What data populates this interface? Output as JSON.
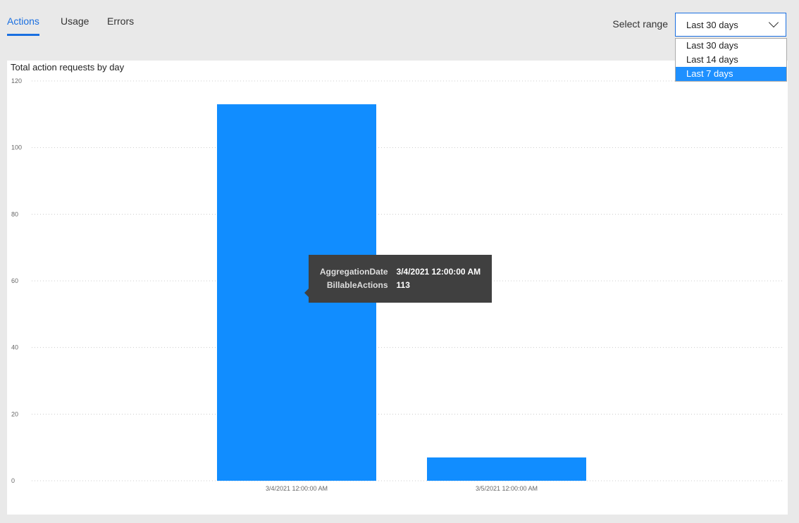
{
  "tabs": [
    {
      "label": "Actions",
      "active": true
    },
    {
      "label": "Usage",
      "active": false
    },
    {
      "label": "Errors",
      "active": false
    }
  ],
  "range": {
    "label": "Select range",
    "selected": "Last 30 days",
    "options": [
      "Last 30 days",
      "Last 14 days",
      "Last 7 days"
    ],
    "highlighted": "Last 7 days"
  },
  "tooltip": {
    "rows": [
      {
        "key": "AggregationDate",
        "value": "3/4/2021 12:00:00 AM"
      },
      {
        "key": "BillableActions",
        "value": "113"
      }
    ]
  },
  "chart_data": {
    "type": "bar",
    "title": "Total action requests by day",
    "categories": [
      "3/4/2021 12:00:00 AM",
      "3/5/2021 12:00:00 AM"
    ],
    "values": [
      113,
      7
    ],
    "ylim": [
      0,
      120
    ],
    "yticks": [
      0,
      20,
      40,
      60,
      80,
      100,
      120
    ],
    "grid": true,
    "color": "#118dff"
  }
}
